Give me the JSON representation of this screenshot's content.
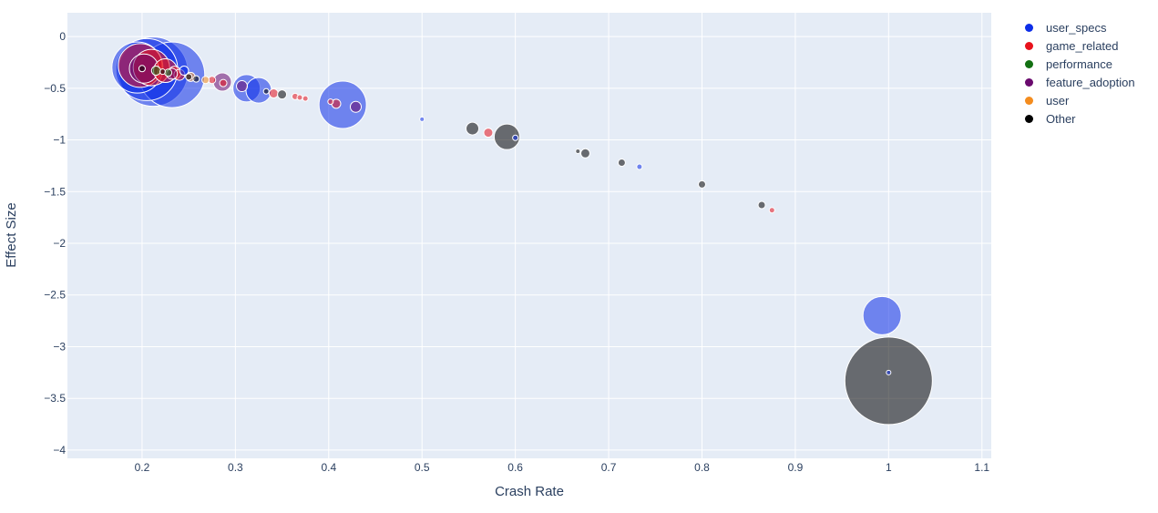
{
  "chart_data": {
    "type": "scatter",
    "title": "",
    "xlabel": "Crash Rate",
    "ylabel": "Effect Size",
    "xlim": [
      0.12,
      1.11
    ],
    "ylim": [
      -4.08,
      0.23
    ],
    "x_ticks": [
      0.2,
      0.3,
      0.4,
      0.5,
      0.6,
      0.7,
      0.8,
      0.9,
      1,
      1.1
    ],
    "x_tick_labels": [
      "0.2",
      "0.3",
      "0.4",
      "0.5",
      "0.6",
      "0.7",
      "0.8",
      "0.9",
      "1",
      "1.1"
    ],
    "y_ticks": [
      0,
      -0.5,
      -1,
      -1.5,
      -2,
      -2.5,
      -3,
      -3.5,
      -4
    ],
    "y_tick_labels": [
      "0",
      "−0.5",
      "−1",
      "−1.5",
      "−2",
      "−2.5",
      "−3",
      "−3.5",
      "−4"
    ],
    "grid": true,
    "legend_position": "top-right",
    "marker_size_encodes": "relative group size",
    "colors": {
      "plot_bg": "#e5ecf6",
      "grid": "#ffffff",
      "axis_text": "#2a3f5f",
      "user_specs": "#0d2ee8",
      "game_related": "#e8121c",
      "performance": "#137012",
      "feature_adoption": "#6a0a6e",
      "user": "#f48c1e",
      "Other": "#000000"
    },
    "series": [
      {
        "name": "user_specs",
        "color": "#0d2ee8",
        "points": [
          {
            "x": 0.195,
            "y": -0.3,
            "size": 28
          },
          {
            "x": 0.205,
            "y": -0.32,
            "size": 34
          },
          {
            "x": 0.212,
            "y": -0.34,
            "size": 38
          },
          {
            "x": 0.232,
            "y": -0.37,
            "size": 36
          },
          {
            "x": 0.245,
            "y": -0.33,
            "size": 5
          },
          {
            "x": 0.312,
            "y": -0.5,
            "size": 15
          },
          {
            "x": 0.325,
            "y": -0.52,
            "size": 14
          },
          {
            "x": 0.415,
            "y": -0.66,
            "size": 26
          },
          {
            "x": 0.5,
            "y": -0.8,
            "size": 2.5
          },
          {
            "x": 0.6,
            "y": -0.98,
            "size": 3
          },
          {
            "x": 0.733,
            "y": -1.26,
            "size": 3
          },
          {
            "x": 0.993,
            "y": -2.7,
            "size": 21
          },
          {
            "x": 1.0,
            "y": -3.25,
            "size": 2.5
          }
        ]
      },
      {
        "name": "game_related",
        "color": "#e8121c",
        "points": [
          {
            "x": 0.198,
            "y": -0.28,
            "size": 24
          },
          {
            "x": 0.21,
            "y": -0.3,
            "size": 20
          },
          {
            "x": 0.225,
            "y": -0.33,
            "size": 13
          },
          {
            "x": 0.235,
            "y": -0.35,
            "size": 7
          },
          {
            "x": 0.24,
            "y": -0.37,
            "size": 6
          },
          {
            "x": 0.275,
            "y": -0.42,
            "size": 4
          },
          {
            "x": 0.287,
            "y": -0.45,
            "size": 4
          },
          {
            "x": 0.341,
            "y": -0.55,
            "size": 5
          },
          {
            "x": 0.364,
            "y": -0.58,
            "size": 3.5
          },
          {
            "x": 0.369,
            "y": -0.59,
            "size": 3
          },
          {
            "x": 0.375,
            "y": -0.6,
            "size": 3
          },
          {
            "x": 0.402,
            "y": -0.63,
            "size": 3
          },
          {
            "x": 0.408,
            "y": -0.65,
            "size": 5
          },
          {
            "x": 0.571,
            "y": -0.93,
            "size": 5
          },
          {
            "x": 0.875,
            "y": -1.68,
            "size": 3
          }
        ]
      },
      {
        "name": "performance",
        "color": "#137012",
        "points": [
          {
            "x": 0.215,
            "y": -0.33,
            "size": 5
          },
          {
            "x": 0.228,
            "y": -0.35,
            "size": 4
          }
        ]
      },
      {
        "name": "feature_adoption",
        "color": "#6a0a6e",
        "points": [
          {
            "x": 0.202,
            "y": -0.31,
            "size": 16
          },
          {
            "x": 0.232,
            "y": -0.36,
            "size": 6
          },
          {
            "x": 0.286,
            "y": -0.44,
            "size": 10
          },
          {
            "x": 0.307,
            "y": -0.48,
            "size": 6
          },
          {
            "x": 0.429,
            "y": -0.68,
            "size": 6
          }
        ]
      },
      {
        "name": "user",
        "color": "#f48c1e",
        "points": [
          {
            "x": 0.268,
            "y": -0.42,
            "size": 4
          },
          {
            "x": 0.252,
            "y": -0.39,
            "size": 5
          }
        ]
      },
      {
        "name": "Other",
        "color": "#000000",
        "points": [
          {
            "x": 0.2,
            "y": -0.31,
            "size": 3.5
          },
          {
            "x": 0.222,
            "y": -0.34,
            "size": 3
          },
          {
            "x": 0.25,
            "y": -0.39,
            "size": 3.5
          },
          {
            "x": 0.258,
            "y": -0.41,
            "size": 3.5
          },
          {
            "x": 0.333,
            "y": -0.53,
            "size": 3
          },
          {
            "x": 0.35,
            "y": -0.56,
            "size": 5
          },
          {
            "x": 0.554,
            "y": -0.89,
            "size": 7
          },
          {
            "x": 0.591,
            "y": -0.97,
            "size": 14
          },
          {
            "x": 0.667,
            "y": -1.11,
            "size": 2.5
          },
          {
            "x": 0.675,
            "y": -1.13,
            "size": 5
          },
          {
            "x": 0.714,
            "y": -1.22,
            "size": 4
          },
          {
            "x": 0.8,
            "y": -1.43,
            "size": 4
          },
          {
            "x": 0.864,
            "y": -1.63,
            "size": 4
          },
          {
            "x": 1.0,
            "y": -3.33,
            "size": 48
          }
        ]
      }
    ]
  }
}
